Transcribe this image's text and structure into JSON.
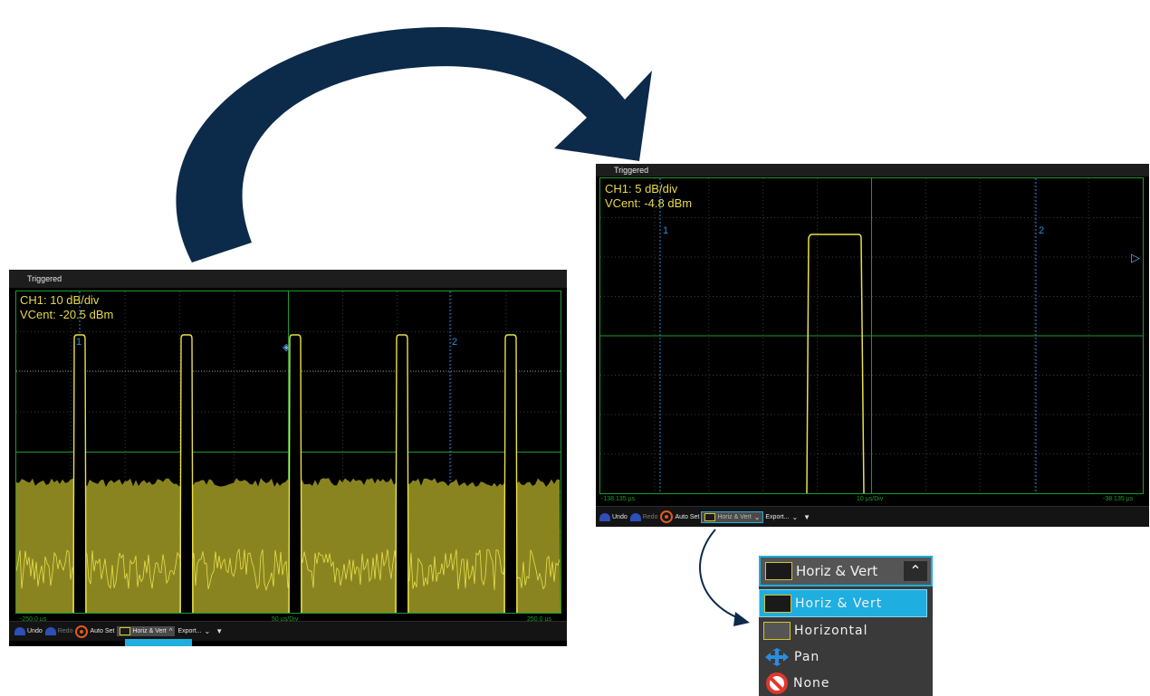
{
  "left_scope": {
    "status": "Triggered",
    "channel_scale": "CH1: 10 dB/div",
    "vcent": "VCent: -20.5 dBm",
    "x_left": "-250.0 µs",
    "x_center": "50 µs/Div",
    "x_right": "250.0 µs",
    "cursor1": "1",
    "cursor2": "2",
    "toolbar": {
      "undo": "Undo",
      "redo": "Redo",
      "autoset": "Auto Set",
      "zoom_mode": "Horiz & Vert",
      "export": "Export..."
    }
  },
  "right_scope": {
    "status": "Triggered",
    "channel_scale": "CH1: 5 dB/div",
    "vcent": "VCent: -4.8 dBm",
    "x_left": "-138.135 µs",
    "x_center": "10 µs/Div",
    "x_right": "-38.135 µs",
    "cursor1": "1",
    "cursor2": "2",
    "toolbar": {
      "undo": "Undo",
      "redo": "Redo",
      "autoset": "Auto Set",
      "zoom_mode": "Horiz & Vert",
      "export": "Export..."
    }
  },
  "zoom_dropdown": {
    "selected": "Horiz & Vert",
    "options": [
      "Horiz & Vert",
      "Horizontal",
      "Pan",
      "None"
    ]
  },
  "colors": {
    "arrow": "#0c2a4a",
    "grid": "#1f9a2a",
    "trace": "#e8e04a",
    "accent": "#1faee0"
  }
}
